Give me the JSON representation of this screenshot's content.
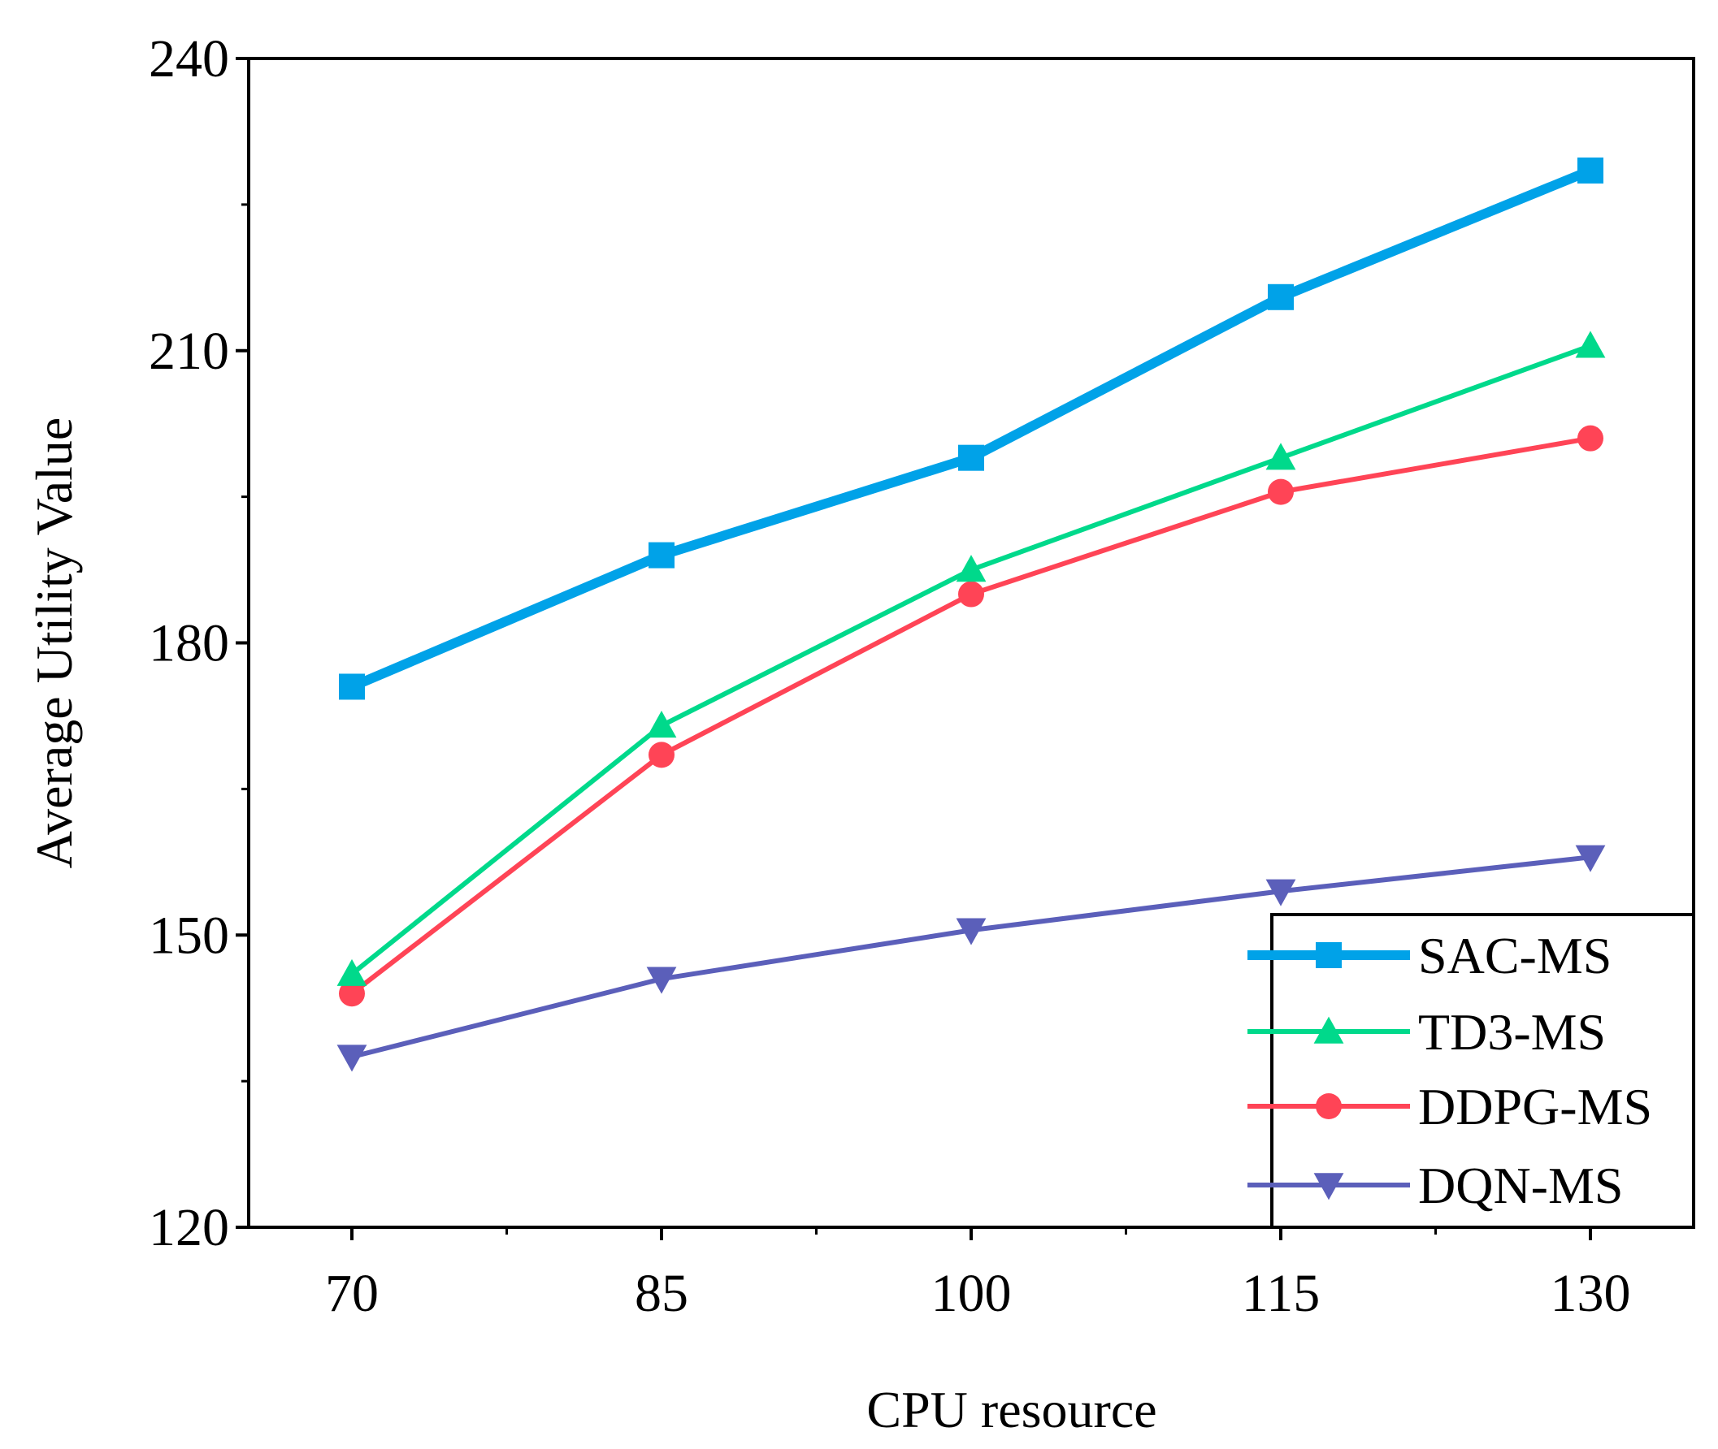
{
  "chart_data": {
    "type": "line",
    "title": "",
    "xlabel": "CPU resource",
    "ylabel": "Average Utility Value",
    "x": [
      70,
      85,
      100,
      115,
      130
    ],
    "xlim": [
      65,
      135
    ],
    "ylim": [
      120,
      240
    ],
    "xticks": [
      70,
      85,
      100,
      115,
      130
    ],
    "yticks": [
      120,
      150,
      180,
      210,
      240
    ],
    "grid": false,
    "legend_position": "bottom-right",
    "series": [
      {
        "name": "SAC-MS",
        "marker": "square",
        "color": "#00A2E8",
        "width": "thick",
        "values": [
          175.5,
          189,
          199,
          215.5,
          228.5
        ]
      },
      {
        "name": "TD3-MS",
        "marker": "triangle-up",
        "color": "#00D98B",
        "width": "normal",
        "values": [
          146,
          171.5,
          187.5,
          199,
          210.5
        ]
      },
      {
        "name": "DDPG-MS",
        "marker": "circle",
        "color": "#FF4456",
        "width": "normal",
        "values": [
          144,
          168.5,
          185,
          195.5,
          201
        ]
      },
      {
        "name": "DQN-MS",
        "marker": "triangle-down",
        "color": "#5B5FBA",
        "width": "normal",
        "values": [
          137.5,
          145.5,
          150.5,
          154.5,
          158
        ]
      }
    ]
  }
}
